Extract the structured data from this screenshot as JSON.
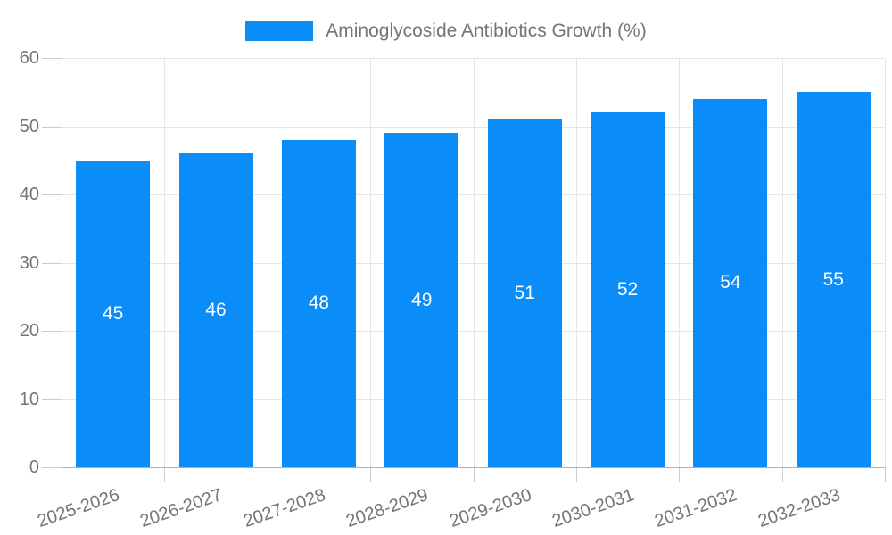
{
  "chart_data": {
    "type": "bar",
    "title": "Aminoglycoside Antibiotics Growth (%)",
    "categories": [
      "2025-2026",
      "2026-2027",
      "2027-2028",
      "2028-2029",
      "2029-2030",
      "2030-2031",
      "2031-2032",
      "2032-2033"
    ],
    "values": [
      45,
      46,
      48,
      49,
      51,
      52,
      54,
      55
    ],
    "xlabel": "",
    "ylabel": "",
    "ylim": [
      0,
      60
    ],
    "yticks": [
      0,
      10,
      20,
      30,
      40,
      50,
      60
    ],
    "grid": true,
    "legend_position": "top-center",
    "value_labels_position": "inside-center"
  },
  "colors": {
    "bar": "#0A8DF8",
    "legend_text": "#757575",
    "axis_text": "#757575",
    "value_label_text": "#ffffff",
    "gridline": "#e6e6e6",
    "axis_line": "#9e9e9e",
    "baseline": "#b0b0b0",
    "tick": "#cccccc",
    "background": "#ffffff"
  }
}
